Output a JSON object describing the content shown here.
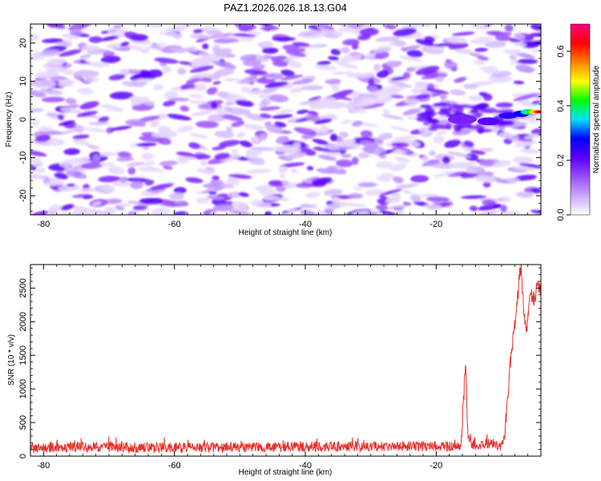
{
  "title": "PAZ1.2026.026.18.13.G04",
  "chart_data": [
    {
      "type": "heatmap",
      "title": "PAZ1.2026.026.18.13.G04",
      "xlabel": "Height of straight line (km)",
      "ylabel": "Frequency (Hz)",
      "xlim": [
        -82,
        -4
      ],
      "ylim": [
        -25,
        25
      ],
      "xticks": [
        -80,
        -60,
        -40,
        -20
      ],
      "yticks": [
        -20,
        -10,
        0,
        10,
        20
      ],
      "colorbar": {
        "label": "Normalized spectral amplitude",
        "range": [
          0,
          0.7
        ],
        "ticks": [
          0.0,
          0.2,
          0.4,
          0.6
        ],
        "tick_labels": [
          "0.0",
          "0.2",
          "0.4",
          "0.6"
        ],
        "colors": [
          "#ffffff",
          "#c8a8ff",
          "#9a4dff",
          "#5a00ff",
          "#0000ff",
          "#00e0ff",
          "#00ff00",
          "#ffff00",
          "#ff8000",
          "#ff0000",
          "#ff0080"
        ]
      },
      "features": [
        {
          "x": [
            -82,
            -4
          ],
          "y": [
            -25,
            25
          ],
          "amplitude": 0.06
        },
        {
          "x": [
            -20,
            -10
          ],
          "y": [
            0,
            4
          ],
          "amplitude": 0.12
        },
        {
          "x": [
            -16,
            -8
          ],
          "y": [
            -2,
            2
          ],
          "amplitude": 0.25
        },
        {
          "x": [
            -8,
            -4
          ],
          "y": [
            1,
            3
          ],
          "amplitude": 0.55
        }
      ]
    },
    {
      "type": "line",
      "xlabel": "Height of straight line (km)",
      "ylabel": "SNR (10 * v/v)",
      "xlim": [
        -82,
        -4
      ],
      "ylim": [
        0,
        2850
      ],
      "xticks": [
        -80,
        -60,
        -40,
        -20
      ],
      "yticks": [
        0,
        500,
        1000,
        1500,
        2000,
        2500
      ],
      "series": [
        {
          "color": "#e8302a",
          "x": [
            -82,
            -75,
            -70,
            -60,
            -50,
            -40,
            -30,
            -20,
            -16.2,
            -15.5,
            -15.2,
            -14.8,
            -14,
            -12,
            -10,
            -9.5,
            -9,
            -8.5,
            -8,
            -7.5,
            -7.2,
            -7,
            -6.8,
            -6.5,
            -6.2,
            -6,
            -5.5,
            -5,
            -4.5,
            -4
          ],
          "y": [
            120,
            140,
            130,
            125,
            130,
            140,
            145,
            150,
            140,
            1400,
            400,
            160,
            150,
            190,
            150,
            300,
            1000,
            1600,
            1900,
            2400,
            2750,
            2850,
            2450,
            2000,
            1800,
            2100,
            2400,
            2300,
            2600,
            2450
          ]
        }
      ]
    }
  ]
}
